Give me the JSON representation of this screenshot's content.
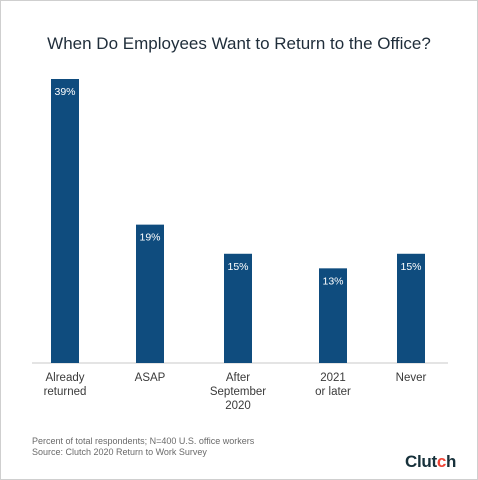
{
  "chart_data": {
    "type": "bar",
    "title": "When Do Employees Want to Return to the Office?",
    "categories": [
      [
        "Already",
        "returned"
      ],
      [
        "ASAP"
      ],
      [
        "After",
        "September",
        "2020"
      ],
      [
        "2021",
        "or later"
      ],
      [
        "Never"
      ]
    ],
    "values": [
      39,
      19,
      15,
      13,
      15
    ],
    "value_labels": [
      "39%",
      "19%",
      "15%",
      "13%",
      "15%"
    ],
    "ylim": [
      0,
      39
    ],
    "bar_color": "#0f4c7e",
    "grid": false
  },
  "footer": {
    "note": "Percent of total respondents; N=400 U.S. office workers",
    "source": "Source: Clutch 2020 Return to Work Survey"
  },
  "logo": {
    "text_main": "Clut",
    "text_accent": "c",
    "text_end": "h"
  }
}
